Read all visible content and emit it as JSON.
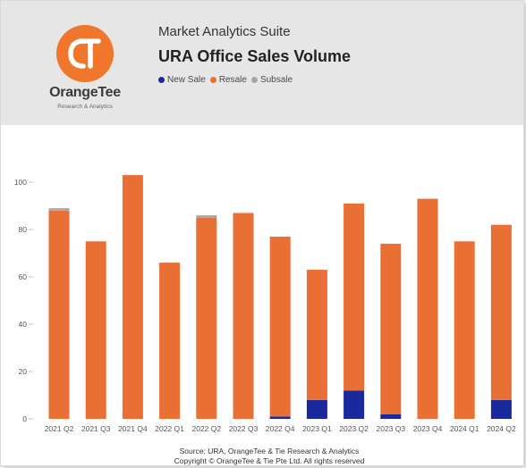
{
  "header": {
    "logo_name": "OrangeTee",
    "logo_tagline": "Research & Analytics",
    "logo_monogram": "OT",
    "suite_title": "Market Analytics Suite",
    "chart_title": "URA Office Sales Volume"
  },
  "colors": {
    "new_sale": "#1a2a9c",
    "resale": "#ea6f35",
    "subsale": "#a6a6a6",
    "brand_orange": "#f0762c"
  },
  "footer": {
    "source": "Source: URA, OrangeTee & Tie Research & Analytics",
    "copyright": "Copyright © OrangeTee & Tie Pte Ltd. All rights reserved"
  },
  "chart_data": {
    "type": "bar",
    "stacked": true,
    "title": "URA Office Sales Volume",
    "xlabel": "",
    "ylabel": "",
    "ylim": [
      0,
      110
    ],
    "yticks": [
      0,
      20,
      40,
      60,
      80,
      100
    ],
    "grid": false,
    "legend_position": "top",
    "categories": [
      "2021 Q2",
      "2021 Q3",
      "2021 Q4",
      "2022 Q1",
      "2022 Q2",
      "2022 Q3",
      "2022 Q4",
      "2023 Q1",
      "2023 Q2",
      "2023 Q3",
      "2023 Q4",
      "2024 Q1",
      "2024 Q2"
    ],
    "series": [
      {
        "name": "New Sale",
        "color": "#1a2a9c",
        "values": [
          0,
          0,
          0,
          0,
          0,
          0,
          1,
          8,
          12,
          2,
          0,
          0,
          8
        ]
      },
      {
        "name": "Resale",
        "color": "#ea6f35",
        "values": [
          88,
          75,
          103,
          66,
          85,
          87,
          76,
          55,
          79,
          72,
          93,
          75,
          74
        ]
      },
      {
        "name": "Subsale",
        "color": "#a6a6a6",
        "values": [
          1,
          0,
          0,
          0,
          1,
          0,
          0,
          0,
          0,
          0,
          0,
          0,
          0
        ]
      }
    ]
  }
}
